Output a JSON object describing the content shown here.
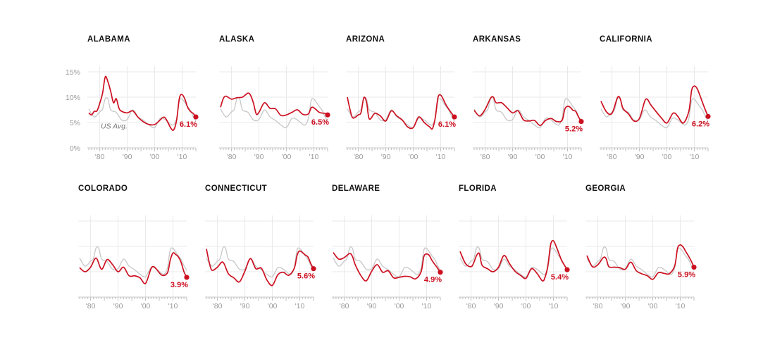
{
  "y_axis": {
    "ticks": [
      0,
      5,
      10,
      15
    ],
    "tick_labels": [
      "0%",
      "5%",
      "10%",
      "15%"
    ],
    "us_avg_label": "US Avg."
  },
  "x_axis": {
    "ticks": [
      1980,
      1990,
      2000,
      2010
    ],
    "tick_labels": [
      "'80",
      "'90",
      "'00",
      "'10"
    ],
    "range": [
      1976,
      2015
    ]
  },
  "colors": {
    "state": "#cc1020",
    "us_avg": "#c7c7c7",
    "grid": "#e9e9e9"
  },
  "chart_data": {
    "type": "line",
    "ylim": [
      0,
      15
    ],
    "xlim": [
      1976,
      2015
    ],
    "us_average": {
      "x": [
        1976,
        1978,
        1980,
        1981,
        1982,
        1983,
        1984,
        1986,
        1988,
        1990,
        1992,
        1994,
        1996,
        1998,
        2000,
        2002,
        2004,
        2006,
        2007,
        2008,
        2009,
        2010,
        2011,
        2012,
        2013,
        2014,
        2015
      ],
      "values": [
        7.7,
        6.1,
        7.1,
        7.6,
        9.7,
        9.6,
        7.5,
        7.0,
        5.5,
        5.6,
        7.5,
        6.1,
        5.4,
        4.5,
        4.0,
        5.8,
        5.5,
        4.6,
        4.6,
        5.8,
        9.3,
        9.6,
        8.9,
        8.1,
        7.4,
        6.2,
        5.3
      ]
    },
    "states": [
      {
        "name": "ALABAMA",
        "x": [
          1976,
          1977,
          1978,
          1979,
          1980,
          1981,
          1982,
          1983,
          1984,
          1985,
          1986,
          1987,
          1988,
          1990,
          1992,
          1994,
          1996,
          1998,
          2000,
          2002,
          2003,
          2004,
          2006,
          2007,
          2008,
          2009,
          2010,
          2011,
          2012,
          2013,
          2014,
          2015
        ],
        "values": [
          6.9,
          6.5,
          7.2,
          7.3,
          8.8,
          10.7,
          14.0,
          13.0,
          11.1,
          8.9,
          9.7,
          7.8,
          7.2,
          6.9,
          7.3,
          6.0,
          5.1,
          4.6,
          4.6,
          5.5,
          6.0,
          5.8,
          3.8,
          3.6,
          5.5,
          9.8,
          10.5,
          9.6,
          8.0,
          7.2,
          6.8,
          6.1
        ],
        "end_label": "6.1%"
      },
      {
        "name": "ALASKA",
        "x": [
          1976,
          1977,
          1978,
          1980,
          1982,
          1984,
          1986,
          1987,
          1988,
          1989,
          1990,
          1992,
          1994,
          1996,
          1998,
          2000,
          2002,
          2004,
          2006,
          2008,
          2009,
          2010,
          2012,
          2014,
          2015
        ],
        "values": [
          8.0,
          9.7,
          10.2,
          9.6,
          9.9,
          10.0,
          10.8,
          10.3,
          8.8,
          6.7,
          7.0,
          8.9,
          7.8,
          7.7,
          6.4,
          6.5,
          7.0,
          7.5,
          6.6,
          6.7,
          7.9,
          7.9,
          7.0,
          6.8,
          6.5
        ],
        "end_label": "6.5%"
      },
      {
        "name": "ARIZONA",
        "x": [
          1976,
          1977,
          1978,
          1980,
          1981,
          1982,
          1983,
          1984,
          1986,
          1988,
          1990,
          1992,
          1994,
          1996,
          1998,
          2000,
          2002,
          2004,
          2006,
          2007,
          2008,
          2009,
          2010,
          2011,
          2012,
          2014,
          2015
        ],
        "values": [
          10.0,
          7.5,
          5.9,
          6.5,
          7.0,
          9.9,
          9.0,
          5.7,
          6.8,
          6.3,
          5.3,
          7.3,
          6.3,
          5.5,
          4.1,
          4.0,
          6.1,
          5.0,
          4.1,
          3.8,
          5.9,
          9.9,
          10.4,
          9.5,
          8.4,
          6.8,
          6.1
        ],
        "end_label": "6.1%"
      },
      {
        "name": "ARKANSAS",
        "x": [
          1976,
          1978,
          1980,
          1982,
          1983,
          1984,
          1986,
          1988,
          1990,
          1992,
          1994,
          1996,
          1998,
          2000,
          2002,
          2004,
          2006,
          2008,
          2009,
          2010,
          2011,
          2012,
          2013,
          2014,
          2015
        ],
        "values": [
          7.4,
          6.3,
          7.6,
          9.8,
          10.0,
          8.9,
          8.9,
          7.9,
          6.9,
          7.3,
          5.5,
          5.3,
          5.4,
          4.4,
          5.4,
          5.8,
          5.2,
          5.4,
          7.6,
          8.2,
          8.0,
          7.4,
          7.2,
          6.1,
          5.2
        ],
        "end_label": "5.2%"
      },
      {
        "name": "CALIFORNIA",
        "x": [
          1976,
          1978,
          1980,
          1982,
          1983,
          1984,
          1986,
          1988,
          1990,
          1992,
          1993,
          1994,
          1996,
          1998,
          2000,
          2002,
          2003,
          2004,
          2006,
          2008,
          2009,
          2010,
          2011,
          2012,
          2013,
          2014,
          2015
        ],
        "values": [
          9.2,
          7.1,
          6.8,
          9.9,
          9.7,
          7.8,
          6.7,
          5.3,
          5.8,
          9.3,
          9.5,
          8.6,
          7.2,
          5.9,
          4.9,
          6.7,
          6.8,
          6.2,
          4.9,
          7.2,
          11.3,
          12.2,
          11.7,
          10.4,
          8.9,
          7.5,
          6.2
        ],
        "end_label": "6.2%"
      },
      {
        "name": "COLORADO",
        "x": [
          1976,
          1978,
          1980,
          1982,
          1984,
          1986,
          1988,
          1990,
          1992,
          1994,
          1996,
          1998,
          2000,
          2002,
          2003,
          2004,
          2006,
          2008,
          2009,
          2010,
          2011,
          2012,
          2013,
          2014,
          2015
        ],
        "values": [
          5.8,
          5.0,
          5.9,
          7.7,
          5.5,
          7.4,
          6.4,
          5.0,
          5.9,
          4.2,
          4.2,
          3.8,
          2.7,
          5.6,
          6.0,
          5.5,
          4.3,
          4.8,
          7.3,
          8.7,
          8.4,
          7.9,
          6.8,
          5.0,
          3.9
        ],
        "end_label": "3.9%"
      },
      {
        "name": "CONNECTICUT",
        "x": [
          1976,
          1977,
          1978,
          1980,
          1982,
          1984,
          1986,
          1988,
          1990,
          1992,
          1994,
          1996,
          1998,
          2000,
          2002,
          2004,
          2006,
          2008,
          2009,
          2010,
          2012,
          2013,
          2014,
          2015
        ],
        "values": [
          9.5,
          6.9,
          5.3,
          5.9,
          6.9,
          4.6,
          3.8,
          3.0,
          5.1,
          7.6,
          5.6,
          5.7,
          3.4,
          2.3,
          4.4,
          4.9,
          4.3,
          5.7,
          8.2,
          9.1,
          8.3,
          7.9,
          6.6,
          5.6
        ],
        "end_label": "5.6%"
      },
      {
        "name": "DELAWARE",
        "x": [
          1976,
          1978,
          1980,
          1982,
          1983,
          1984,
          1986,
          1988,
          1990,
          1992,
          1994,
          1996,
          1998,
          2000,
          2002,
          2004,
          2006,
          2008,
          2009,
          2010,
          2011,
          2012,
          2014,
          2015
        ],
        "values": [
          8.8,
          7.5,
          7.8,
          8.6,
          8.0,
          6.4,
          4.3,
          3.2,
          5.1,
          6.4,
          4.9,
          5.2,
          3.8,
          3.9,
          4.1,
          4.0,
          3.6,
          5.0,
          8.0,
          8.5,
          8.2,
          7.2,
          5.7,
          4.9
        ],
        "end_label": "4.9%"
      },
      {
        "name": "FLORIDA",
        "x": [
          1976,
          1978,
          1980,
          1981,
          1982,
          1983,
          1984,
          1986,
          1988,
          1990,
          1992,
          1994,
          1996,
          1998,
          2000,
          2002,
          2004,
          2006,
          2007,
          2008,
          2009,
          2010,
          2011,
          2012,
          2013,
          2014,
          2015
        ],
        "values": [
          9.0,
          6.6,
          6.0,
          6.8,
          8.2,
          8.6,
          6.3,
          5.6,
          5.0,
          5.9,
          8.2,
          6.6,
          5.1,
          4.3,
          3.7,
          5.6,
          4.7,
          3.2,
          4.0,
          6.3,
          10.4,
          11.1,
          10.0,
          8.6,
          7.2,
          6.3,
          5.4
        ],
        "end_label": "5.4%"
      },
      {
        "name": "GEORGIA",
        "x": [
          1976,
          1978,
          1980,
          1982,
          1983,
          1984,
          1986,
          1988,
          1990,
          1992,
          1994,
          1996,
          1998,
          2000,
          2002,
          2004,
          2006,
          2008,
          2009,
          2010,
          2011,
          2012,
          2013,
          2014,
          2015
        ],
        "values": [
          8.2,
          6.0,
          6.4,
          7.8,
          7.6,
          6.0,
          5.9,
          5.8,
          5.5,
          6.9,
          5.2,
          4.6,
          4.2,
          3.5,
          4.8,
          4.7,
          4.6,
          6.2,
          9.6,
          10.3,
          9.9,
          9.0,
          8.1,
          7.1,
          5.9
        ],
        "end_label": "5.9%"
      }
    ]
  }
}
